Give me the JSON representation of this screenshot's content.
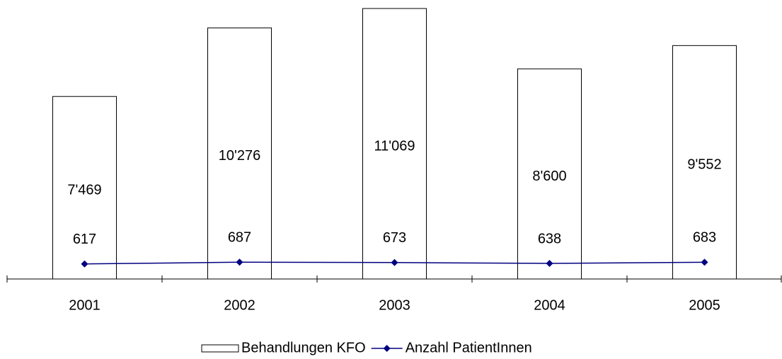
{
  "chart_data": {
    "type": "combo",
    "categories": [
      "2001",
      "2002",
      "2003",
      "2004",
      "2005"
    ],
    "series": [
      {
        "name": "Behandlungen KFO",
        "type": "bar",
        "color": "#ffffff",
        "values": [
          7469,
          10276,
          11069,
          8600,
          9552
        ],
        "value_labels": [
          "7'469",
          "10'276",
          "11'069",
          "8'600",
          "9'552"
        ]
      },
      {
        "name": "Anzahl PatientInnen",
        "type": "line",
        "color": "#000080",
        "values": [
          617,
          687,
          673,
          638,
          683
        ]
      }
    ],
    "legend": "bottom"
  }
}
